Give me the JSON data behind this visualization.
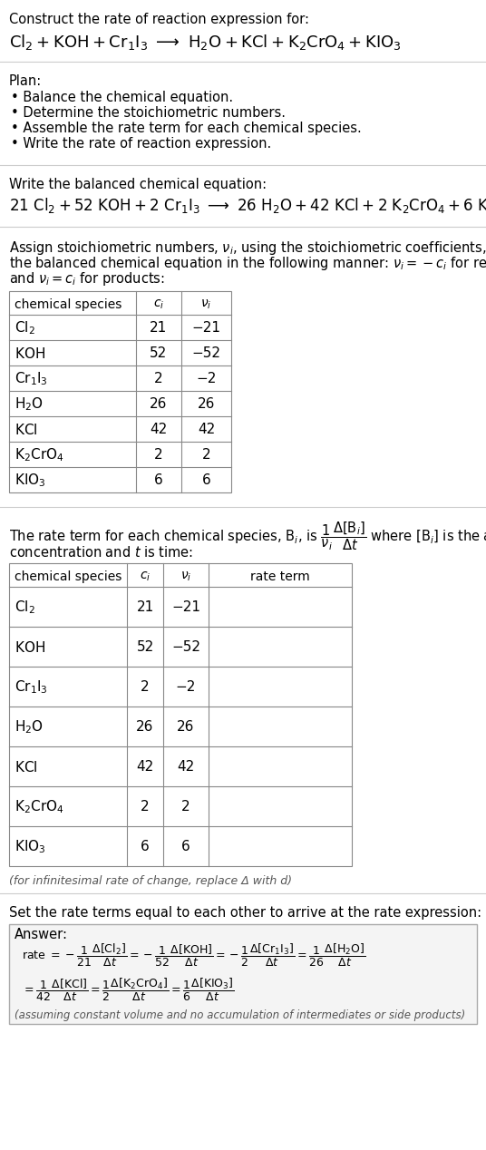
{
  "title_line1": "Construct the rate of reaction expression for:",
  "bg_color": "#ffffff",
  "text_color": "#000000",
  "table_border_color": "#888888",
  "plan_items": [
    "Balance the chemical equation.",
    "Determine the stoichiometric numbers.",
    "Assemble the rate term for each chemical species.",
    "Write the rate of reaction expression."
  ],
  "table1_data": [
    [
      "Cl_2",
      "21",
      "−21"
    ],
    [
      "KOH",
      "52",
      "−52"
    ],
    [
      "Cr_1I_3",
      "2",
      "−2"
    ],
    [
      "H_2O",
      "26",
      "26"
    ],
    [
      "KCl",
      "42",
      "42"
    ],
    [
      "K_2CrO_4",
      "2",
      "2"
    ],
    [
      "KIO_3",
      "6",
      "6"
    ]
  ],
  "table2_data": [
    [
      "Cl_2",
      "21",
      "−21"
    ],
    [
      "KOH",
      "52",
      "−52"
    ],
    [
      "Cr_1I_3",
      "2",
      "−2"
    ],
    [
      "H_2O",
      "26",
      "26"
    ],
    [
      "KCl",
      "42",
      "42"
    ],
    [
      "K_2CrO_4",
      "2",
      "2"
    ],
    [
      "KIO_3",
      "6",
      "6"
    ]
  ],
  "infinitesimal_note": "(for infinitesimal rate of change, replace Δ with d)",
  "answer_note": "(assuming constant volume and no accumulation of intermediates or side products)"
}
